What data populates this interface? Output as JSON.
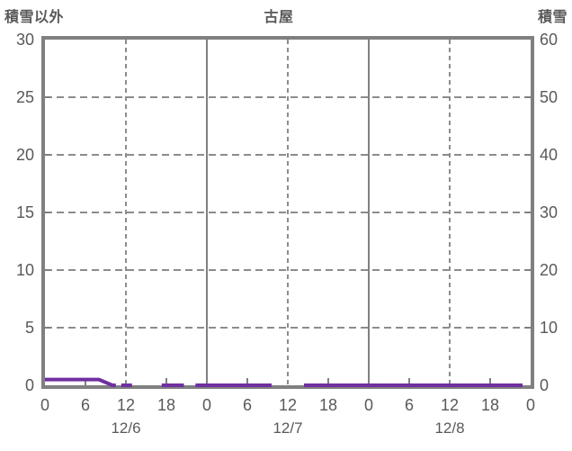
{
  "header": {
    "left_axis_title": "積雪以外",
    "chart_title": "古屋",
    "right_axis_title": "積雪"
  },
  "chart_data": {
    "type": "line",
    "title": "古屋",
    "left_axis": {
      "title": "積雪以外",
      "min": 0,
      "max": 30,
      "ticks": [
        0,
        5,
        10,
        15,
        20,
        25,
        30
      ]
    },
    "right_axis": {
      "title": "積雪",
      "min": 0,
      "max": 60,
      "ticks": [
        0,
        10,
        20,
        30,
        40,
        50,
        60
      ]
    },
    "x_axis": {
      "unit": "hours",
      "range_hours": [
        0,
        72
      ],
      "tick_step_hours": 6,
      "hour_labels": [
        "0",
        "6",
        "12",
        "18",
        "0",
        "6",
        "12",
        "18",
        "0",
        "6",
        "12",
        "18",
        "0"
      ],
      "date_labels": [
        "12/6",
        "12/7",
        "12/8"
      ]
    },
    "gridlines": {
      "vertical_solid_hours": [
        24,
        48
      ],
      "vertical_dashed_hours": [
        12,
        36,
        60
      ],
      "horizontal_dashed_values": [
        5,
        10,
        15,
        20,
        25
      ],
      "minor_tick_hours": [
        6,
        18,
        30,
        42,
        54,
        66
      ]
    },
    "series": [
      {
        "name": "積雪以外",
        "axis": "left",
        "color": "#7030A0",
        "segments": [
          [
            [
              0,
              0.5
            ],
            [
              8,
              0.5
            ],
            [
              10,
              0
            ],
            [
              10.5,
              0
            ]
          ],
          [
            [
              11.3,
              0
            ],
            [
              12.9,
              0
            ]
          ],
          [
            [
              17.3,
              0
            ],
            [
              20.6,
              0
            ]
          ],
          [
            [
              22.3,
              0
            ],
            [
              33.6,
              0
            ]
          ],
          [
            [
              38.4,
              0
            ],
            [
              70.8,
              0
            ]
          ]
        ]
      }
    ],
    "legend": {
      "visible": false
    },
    "colors": {
      "frame": "#808080",
      "grid_solid": "#808080",
      "grid_dashed": "#8c8c8c",
      "tick": "#808080",
      "text": "#595959",
      "series_purple": "#7030A0"
    }
  }
}
